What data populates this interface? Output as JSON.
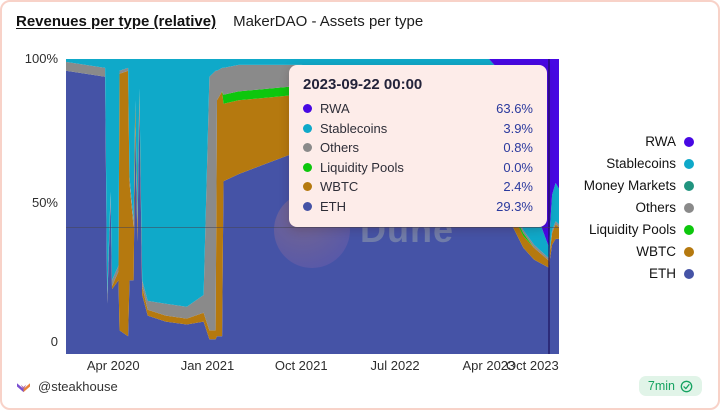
{
  "header": {
    "title": "Revenues per type (relative)",
    "subtitle": "MakerDAO - Assets per type"
  },
  "y_axis": {
    "ticks": [
      "100%",
      "50%",
      "0"
    ]
  },
  "x_axis": {
    "ticks": [
      {
        "label": "Apr 2020",
        "date": "2020-04-01"
      },
      {
        "label": "Jan 2021",
        "date": "2021-01-01"
      },
      {
        "label": "Oct 2021",
        "date": "2021-10-01"
      },
      {
        "label": "Jul 2022",
        "date": "2022-07-01"
      },
      {
        "label": "Apr 2023",
        "date": "2023-04-01"
      },
      {
        "label": "Oct 2023",
        "date": "2023-10-01"
      }
    ]
  },
  "legend": {
    "items": [
      {
        "label": "RWA",
        "color": "#4708e3"
      },
      {
        "label": "Stablecoins",
        "color": "#0fa9c9"
      },
      {
        "label": "Money Markets",
        "color": "#21947f"
      },
      {
        "label": "Others",
        "color": "#8a8a8a"
      },
      {
        "label": "Liquidity Pools",
        "color": "#0dc70d"
      },
      {
        "label": "WBTC",
        "color": "#b5790f"
      },
      {
        "label": "ETH",
        "color": "#4553a6"
      }
    ]
  },
  "tooltip": {
    "title": "2023-09-22 00:00",
    "rows": [
      {
        "label": "RWA",
        "value": "63.6%",
        "color": "#4708e3"
      },
      {
        "label": "Stablecoins",
        "value": "3.9%",
        "color": "#0fa9c9"
      },
      {
        "label": "Others",
        "value": "0.8%",
        "color": "#8a8a8a"
      },
      {
        "label": "Liquidity Pools",
        "value": "0.0%",
        "color": "#0dc70d"
      },
      {
        "label": "WBTC",
        "value": "2.4%",
        "color": "#b5790f"
      },
      {
        "label": "ETH",
        "value": "29.3%",
        "color": "#4553a6"
      }
    ]
  },
  "watermark": {
    "text": "Dune"
  },
  "footer": {
    "author": "@steakhouse",
    "badge_label": "7min"
  },
  "chart_data": {
    "type": "area",
    "stacked": true,
    "relative": true,
    "title": "MakerDAO - Assets per type",
    "ylabel": "%",
    "ylim": [
      0,
      100
    ],
    "legend_position": "right",
    "grid": false,
    "x": [
      "2019-11-15",
      "2020-03-08",
      "2020-03-14",
      "2020-03-24",
      "2020-03-28",
      "2020-04-16",
      "2020-04-19",
      "2020-05-14",
      "2020-05-18",
      "2020-05-30",
      "2020-06-04",
      "2020-06-10",
      "2020-06-16",
      "2020-06-24",
      "2020-07-10",
      "2020-09-01",
      "2020-11-01",
      "2020-12-20",
      "2021-01-06",
      "2021-01-24",
      "2021-01-28",
      "2021-02-12",
      "2021-02-16",
      "2021-04-01",
      "2021-07-01",
      "2021-10-01",
      "2022-01-01",
      "2022-04-01",
      "2022-07-01",
      "2022-08-20",
      "2022-09-28",
      "2022-11-01",
      "2023-01-01",
      "2023-02-15",
      "2023-04-01",
      "2023-05-10",
      "2023-06-10",
      "2023-07-10",
      "2023-08-10",
      "2023-09-22",
      "2023-10-02",
      "2023-10-12",
      "2023-10-22"
    ],
    "series": [
      {
        "name": "RWA",
        "color": "#4708e3",
        "values": [
          0,
          0,
          0,
          0,
          0,
          0,
          0,
          0,
          0,
          0,
          0,
          0,
          0,
          0,
          0,
          0,
          0,
          0,
          0,
          0,
          0,
          0,
          0,
          0,
          0,
          0,
          0,
          0,
          0,
          0,
          0,
          0,
          0,
          0,
          0,
          5,
          18,
          34,
          50,
          63.6,
          46,
          42,
          44
        ]
      },
      {
        "name": "Stablecoins",
        "color": "#0fa9c9",
        "values": [
          1,
          3,
          80,
          45,
          75,
          70,
          4,
          3,
          40,
          55,
          14,
          55,
          10,
          75,
          82,
          83,
          84,
          80,
          6,
          4,
          4,
          3,
          3,
          2,
          2,
          2,
          3,
          4,
          4,
          4,
          38,
          39,
          38,
          36,
          40,
          38,
          32,
          24,
          13,
          3.9,
          12,
          13,
          12
        ]
      },
      {
        "name": "Money Markets",
        "color": "#21947f",
        "values": [
          0,
          0,
          0,
          0,
          0,
          0,
          0,
          0,
          0,
          0,
          0,
          0,
          0,
          0,
          0,
          0,
          0,
          0,
          0,
          0,
          0,
          0,
          0,
          0,
          0,
          0,
          0,
          0,
          0,
          0,
          0,
          0,
          0,
          0,
          0,
          0,
          0,
          0,
          0,
          0,
          0,
          0,
          0
        ]
      },
      {
        "name": "Others",
        "color": "#8a8a8a",
        "values": [
          3,
          3,
          3,
          2,
          2,
          2,
          1,
          1,
          2,
          2,
          1,
          1,
          1,
          2,
          3,
          4,
          4,
          6,
          86,
          88,
          10,
          8,
          9,
          9,
          8,
          7,
          6,
          4,
          2,
          2,
          4,
          5,
          5,
          4,
          3,
          2,
          2,
          1,
          1,
          0.8,
          1,
          1,
          1
        ]
      },
      {
        "name": "Liquidity Pools",
        "color": "#0dc70d",
        "values": [
          0,
          0,
          0,
          0,
          0,
          0,
          0,
          0,
          0,
          0,
          0,
          0,
          0,
          0,
          0,
          0,
          0,
          0,
          0,
          0,
          0,
          0,
          3,
          3,
          3,
          3,
          2,
          2,
          1,
          1,
          1,
          2,
          2,
          1,
          1,
          1,
          1,
          1,
          0,
          0,
          0,
          0,
          0
        ]
      },
      {
        "name": "WBTC",
        "color": "#b5790f",
        "values": [
          0,
          0,
          0,
          0,
          1,
          3,
          87,
          90,
          33,
          18,
          8,
          6,
          4,
          3,
          2,
          2,
          2,
          3,
          3,
          3,
          80,
          83,
          26,
          25,
          22,
          19,
          14,
          9,
          5,
          6,
          6,
          7,
          7,
          8,
          6,
          5,
          4,
          4,
          4,
          2.4,
          4,
          5,
          4
        ]
      },
      {
        "name": "ETH",
        "color": "#4553a6",
        "values": [
          96,
          94,
          17,
          53,
          22,
          25,
          8,
          6,
          25,
          25,
          77,
          38,
          85,
          20,
          13,
          11,
          10,
          11,
          5,
          5,
          6,
          6,
          58,
          61,
          65,
          69,
          75,
          81,
          88,
          87,
          51,
          47,
          48,
          51,
          50,
          49,
          43,
          36,
          32,
          29.3,
          37,
          39,
          39
        ]
      }
    ],
    "crosshair": {
      "date": "2023-09-22",
      "y_frac": 0.57
    }
  }
}
